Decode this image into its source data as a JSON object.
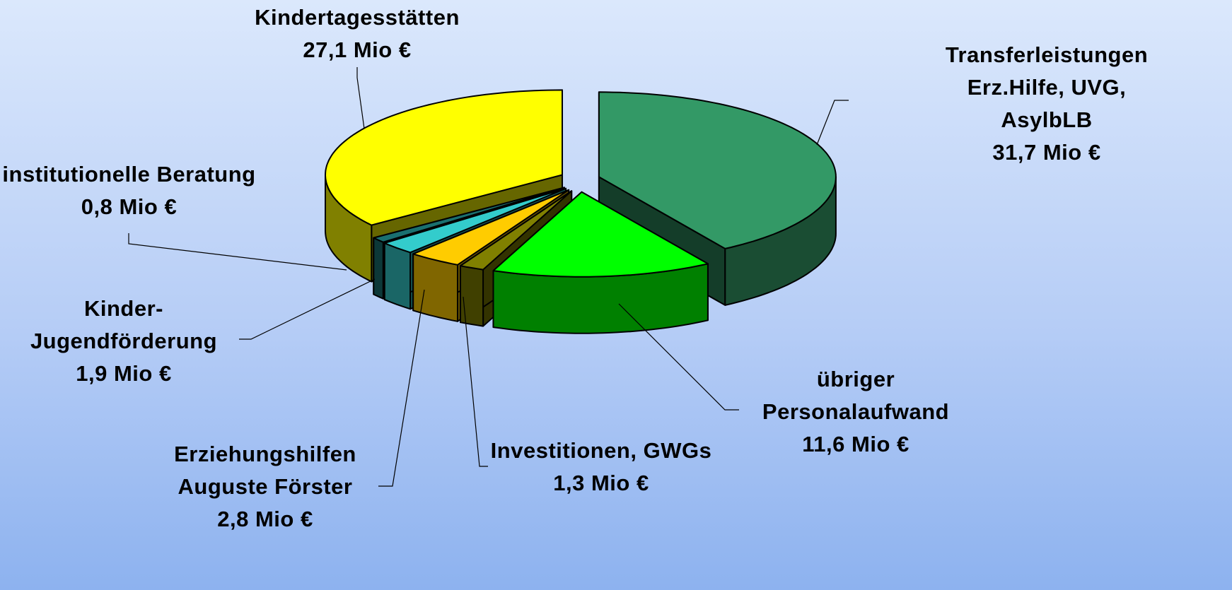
{
  "chart_data": {
    "type": "pie",
    "categories": [
      "Transferleistungen Erz.Hilfe, UVG, AsylbLB",
      "übriger Personalaufwand",
      "Investitionen, GWGs",
      "Erziehungshilfen Auguste Förster",
      "Kinder-Jugendförderung",
      "institutionelle Beratung",
      "Kindertagesstätten"
    ],
    "values": [
      31.7,
      11.6,
      1.3,
      2.8,
      1.9,
      0.8,
      27.1
    ],
    "value_labels": [
      "31,7 Mio €",
      "11,6 Mio €",
      "1,3 Mio €",
      "2,8 Mio €",
      "1,9 Mio €",
      "0,8 Mio €",
      "27,1 Mio €"
    ],
    "colors": [
      "#339966",
      "#00ff00",
      "#808000",
      "#ffcc00",
      "#33cccc",
      "#1a7070",
      "#ffff00"
    ]
  }
}
